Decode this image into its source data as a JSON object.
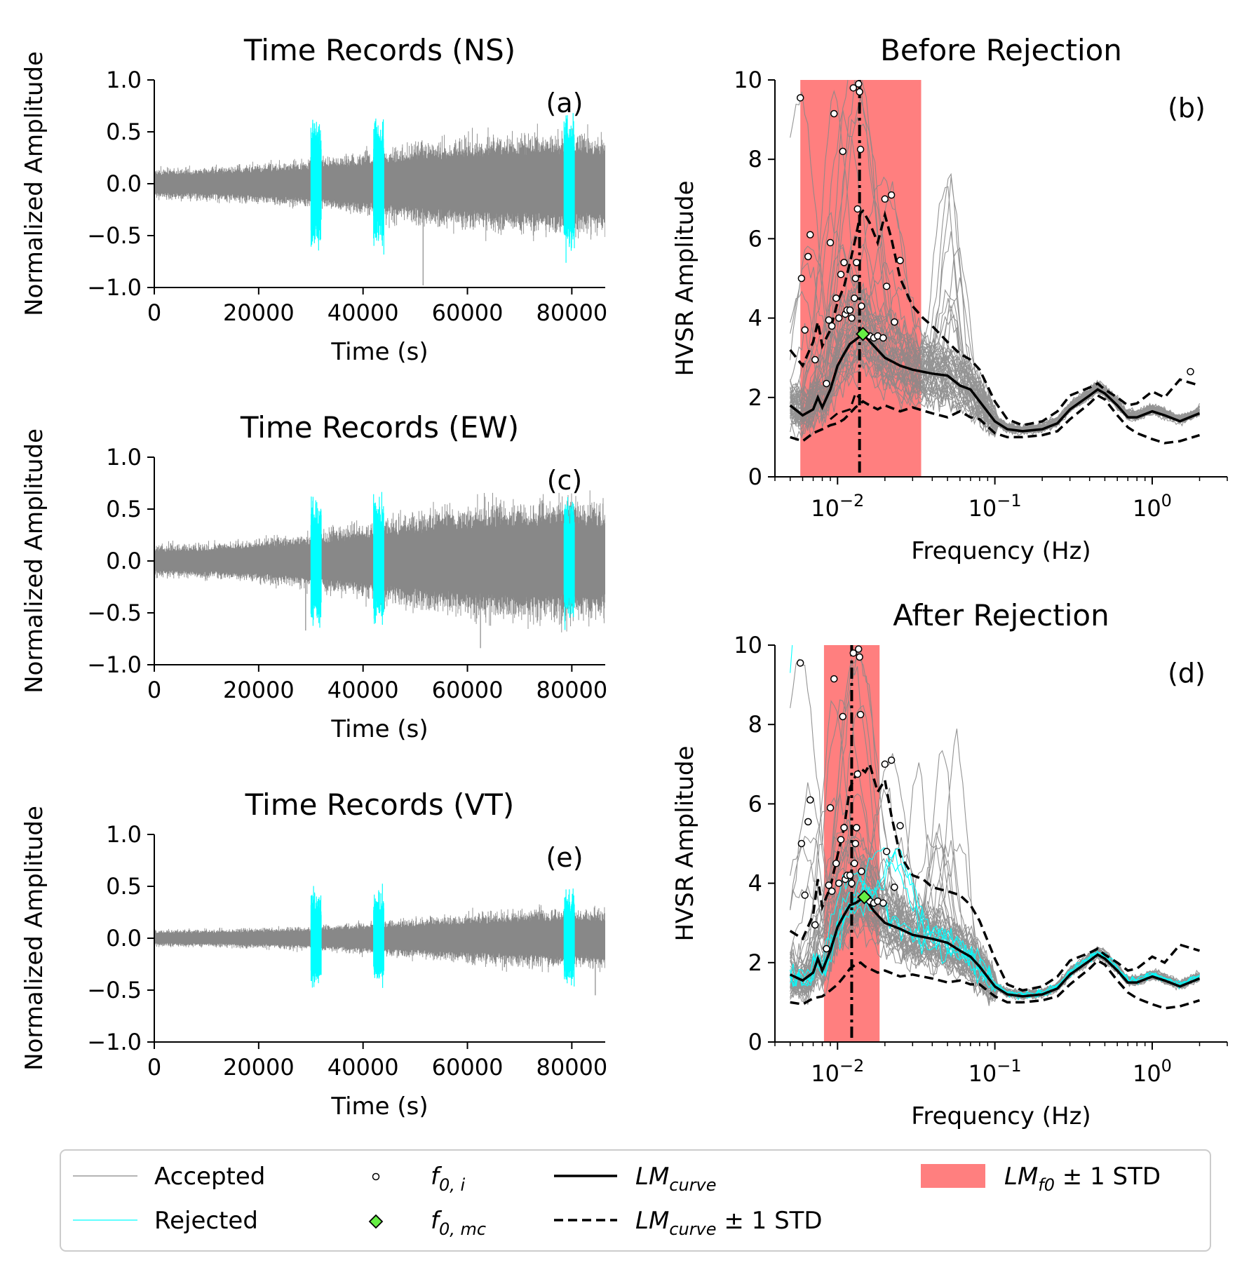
{
  "chart_data": [
    {
      "panel": "(a)",
      "type": "line",
      "title": "Time Records (NS)",
      "xlabel": "Time (s)",
      "ylabel": "Normalized Amplitude",
      "xlim": [
        0,
        86400
      ],
      "ylim": [
        -1.0,
        1.0
      ],
      "xticks": [
        0,
        20000,
        40000,
        60000,
        80000
      ],
      "yticks": [
        -1.0,
        -0.5,
        0.0,
        0.5,
        1.0
      ],
      "envelope": {
        "x": [
          0,
          10000,
          20000,
          30000,
          40000,
          50000,
          60000,
          70000,
          80000,
          86400
        ],
        "amplitude": [
          0.15,
          0.16,
          0.2,
          0.24,
          0.32,
          0.4,
          0.46,
          0.5,
          0.52,
          0.5
        ]
      },
      "spikes": [
        {
          "x": 51500,
          "y": -0.98
        }
      ],
      "rejected_windows": [
        [
          30000,
          32000
        ],
        [
          42000,
          44000
        ],
        [
          78500,
          80500
        ]
      ],
      "rejected_peak": 0.62
    },
    {
      "panel": "(c)",
      "type": "line",
      "title": "Time Records (EW)",
      "xlabel": "Time (s)",
      "ylabel": "Normalized Amplitude",
      "xlim": [
        0,
        86400
      ],
      "ylim": [
        -1.0,
        1.0
      ],
      "xticks": [
        0,
        20000,
        40000,
        60000,
        80000
      ],
      "yticks": [
        -1.0,
        -0.5,
        0.0,
        0.5,
        1.0
      ],
      "envelope": {
        "x": [
          0,
          10000,
          20000,
          30000,
          40000,
          50000,
          60000,
          70000,
          80000,
          86400
        ],
        "amplitude": [
          0.16,
          0.17,
          0.22,
          0.28,
          0.38,
          0.48,
          0.56,
          0.6,
          0.62,
          0.58
        ]
      },
      "spikes": [
        {
          "x": 29000,
          "y": -0.67
        },
        {
          "x": 62500,
          "y": -0.84
        }
      ],
      "rejected_windows": [
        [
          30000,
          32000
        ],
        [
          42000,
          44000
        ],
        [
          78500,
          80500
        ]
      ],
      "rejected_peak": 0.6
    },
    {
      "panel": "(e)",
      "type": "line",
      "title": "Time Records (VT)",
      "xlabel": "Time (s)",
      "ylabel": "Normalized Amplitude",
      "xlim": [
        0,
        86400
      ],
      "ylim": [
        -1.0,
        1.0
      ],
      "xticks": [
        0,
        20000,
        40000,
        60000,
        80000
      ],
      "yticks": [
        -1.0,
        -0.5,
        0.0,
        0.5,
        1.0
      ],
      "envelope": {
        "x": [
          0,
          10000,
          20000,
          30000,
          40000,
          50000,
          60000,
          70000,
          80000,
          86400
        ],
        "amplitude": [
          0.08,
          0.09,
          0.1,
          0.12,
          0.16,
          0.2,
          0.24,
          0.28,
          0.3,
          0.3
        ]
      },
      "spikes": [
        {
          "x": 84500,
          "y": -0.55
        }
      ],
      "rejected_windows": [
        [
          30000,
          32000
        ],
        [
          42000,
          44000
        ],
        [
          78500,
          80500
        ]
      ],
      "rejected_peak": 0.45
    },
    {
      "panel": "(b)",
      "type": "line",
      "title": "Before Rejection",
      "xlabel": "Frequency (Hz)",
      "ylabel": "HVSR Amplitude",
      "xscale": "log",
      "xlim": [
        0.004,
        3
      ],
      "ylim": [
        0,
        10
      ],
      "yticks": [
        0,
        2,
        4,
        6,
        8,
        10
      ],
      "xticks_major": [
        0.01,
        0.1,
        1
      ],
      "xtick_labels": [
        {
          "base": "10",
          "exp": "−2"
        },
        {
          "base": "10",
          "exp": "−1"
        },
        {
          "base": "10",
          "exp": "0"
        }
      ],
      "lm_f0_band": [
        0.0058,
        0.034
      ],
      "lm_f0": 0.0138,
      "f0_mc": {
        "x": 0.0145,
        "y": 3.6
      },
      "f0_i": [
        [
          0.0058,
          9.55
        ],
        [
          0.0059,
          5.0
        ],
        [
          0.0062,
          3.7
        ],
        [
          0.0065,
          5.55
        ],
        [
          0.0067,
          6.1
        ],
        [
          0.0072,
          2.95
        ],
        [
          0.0085,
          2.35
        ],
        [
          0.0088,
          3.95
        ],
        [
          0.009,
          5.9
        ],
        [
          0.0092,
          3.8
        ],
        [
          0.0095,
          9.15
        ],
        [
          0.0098,
          4.5
        ],
        [
          0.0102,
          4.0
        ],
        [
          0.0105,
          5.1
        ],
        [
          0.0108,
          8.2
        ],
        [
          0.011,
          5.4
        ],
        [
          0.0112,
          4.1
        ],
        [
          0.0115,
          4.2
        ],
        [
          0.012,
          4.2
        ],
        [
          0.0123,
          4.0
        ],
        [
          0.0126,
          9.8
        ],
        [
          0.0128,
          4.5
        ],
        [
          0.013,
          5.0
        ],
        [
          0.0132,
          5.4
        ],
        [
          0.0134,
          6.75
        ],
        [
          0.0136,
          9.9
        ],
        [
          0.0138,
          9.7
        ],
        [
          0.014,
          8.25
        ],
        [
          0.0142,
          4.3
        ],
        [
          0.016,
          3.55
        ],
        [
          0.017,
          3.5
        ],
        [
          0.018,
          3.55
        ],
        [
          0.0195,
          3.5
        ],
        [
          0.02,
          7.0
        ],
        [
          0.0205,
          4.8
        ],
        [
          0.022,
          7.1
        ],
        [
          0.023,
          3.9
        ],
        [
          0.025,
          5.45
        ],
        [
          1.75,
          2.65
        ]
      ],
      "lm_curve": {
        "x": [
          0.005,
          0.006,
          0.007,
          0.0075,
          0.008,
          0.009,
          0.01,
          0.011,
          0.012,
          0.013,
          0.0145,
          0.017,
          0.02,
          0.025,
          0.03,
          0.04,
          0.05,
          0.06,
          0.07,
          0.08,
          0.1,
          0.12,
          0.15,
          0.2,
          0.25,
          0.3,
          0.4,
          0.45,
          0.5,
          0.6,
          0.7,
          0.8,
          1.0,
          1.2,
          1.5,
          2.0
        ],
        "y": [
          1.8,
          1.55,
          1.7,
          2.0,
          1.75,
          2.2,
          2.8,
          3.1,
          3.35,
          3.45,
          3.6,
          3.3,
          3.0,
          2.8,
          2.7,
          2.6,
          2.55,
          2.3,
          2.2,
          1.9,
          1.4,
          1.2,
          1.15,
          1.2,
          1.35,
          1.7,
          2.05,
          2.2,
          2.1,
          1.8,
          1.5,
          1.5,
          1.65,
          1.55,
          1.4,
          1.6
        ]
      },
      "lm_curve_plus": {
        "x": [
          0.005,
          0.006,
          0.007,
          0.0075,
          0.008,
          0.009,
          0.01,
          0.011,
          0.012,
          0.013,
          0.014,
          0.0145,
          0.016,
          0.018,
          0.02,
          0.022,
          0.025,
          0.03,
          0.035,
          0.04,
          0.05,
          0.06,
          0.07,
          0.08,
          0.1,
          0.12,
          0.15,
          0.2,
          0.25,
          0.3,
          0.4,
          0.45,
          0.5,
          0.6,
          0.7,
          0.8,
          1.0,
          1.2,
          1.5,
          2.0
        ],
        "y": [
          3.2,
          2.8,
          3.4,
          3.9,
          3.3,
          3.7,
          4.4,
          4.8,
          5.4,
          6.0,
          6.65,
          6.7,
          6.4,
          5.9,
          6.6,
          6.0,
          5.0,
          4.3,
          4.0,
          3.8,
          3.4,
          3.1,
          2.95,
          2.7,
          1.9,
          1.45,
          1.3,
          1.4,
          1.65,
          2.05,
          2.25,
          2.35,
          2.2,
          2.0,
          1.8,
          1.85,
          2.15,
          2.0,
          2.45,
          2.3
        ]
      },
      "lm_curve_minus": {
        "x": [
          0.005,
          0.006,
          0.007,
          0.008,
          0.009,
          0.01,
          0.011,
          0.012,
          0.013,
          0.014,
          0.0145,
          0.016,
          0.018,
          0.02,
          0.025,
          0.03,
          0.04,
          0.05,
          0.06,
          0.07,
          0.08,
          0.1,
          0.12,
          0.15,
          0.2,
          0.25,
          0.3,
          0.4,
          0.45,
          0.5,
          0.6,
          0.7,
          0.8,
          1.0,
          1.2,
          1.5,
          2.0
        ],
        "y": [
          1.0,
          0.9,
          1.1,
          1.2,
          1.3,
          1.35,
          1.45,
          1.6,
          1.75,
          1.85,
          1.9,
          1.8,
          1.7,
          1.8,
          1.65,
          1.75,
          1.6,
          1.5,
          1.65,
          1.5,
          1.45,
          1.1,
          1.0,
          1.0,
          1.05,
          1.15,
          1.45,
          1.85,
          2.05,
          1.95,
          1.55,
          1.25,
          1.1,
          0.95,
          0.85,
          0.9,
          1.05
        ]
      },
      "lm_curve_minus_extra": {
        "x": [
          0.009,
          0.01,
          0.011,
          0.012,
          0.0125,
          0.013,
          0.014
        ],
        "y": [
          1.45,
          1.6,
          1.65,
          1.7,
          1.9,
          2.1,
          1.95
        ]
      }
    },
    {
      "panel": "(d)",
      "type": "line",
      "title": "After Rejection",
      "xlabel": "Frequency (Hz)",
      "ylabel": "HVSR Amplitude",
      "xscale": "log",
      "xlim": [
        0.004,
        3
      ],
      "ylim": [
        0,
        10
      ],
      "yticks": [
        0,
        2,
        4,
        6,
        8,
        10
      ],
      "xticks_major": [
        0.01,
        0.1,
        1
      ],
      "xtick_labels": [
        {
          "base": "10",
          "exp": "−2"
        },
        {
          "base": "10",
          "exp": "−1"
        },
        {
          "base": "10",
          "exp": "0"
        }
      ],
      "lm_f0_band": [
        0.0082,
        0.0185
      ],
      "lm_f0": 0.0123,
      "f0_mc": {
        "x": 0.0148,
        "y": 3.65
      },
      "f0_i": [
        [
          0.0058,
          9.55
        ],
        [
          0.0059,
          5.0
        ],
        [
          0.0062,
          3.7
        ],
        [
          0.0065,
          5.55
        ],
        [
          0.0067,
          6.1
        ],
        [
          0.0072,
          2.95
        ],
        [
          0.0085,
          2.35
        ],
        [
          0.0088,
          3.95
        ],
        [
          0.009,
          5.9
        ],
        [
          0.0092,
          3.8
        ],
        [
          0.0095,
          9.15
        ],
        [
          0.0098,
          4.5
        ],
        [
          0.0102,
          4.0
        ],
        [
          0.0105,
          5.1
        ],
        [
          0.0108,
          8.2
        ],
        [
          0.011,
          5.4
        ],
        [
          0.0112,
          4.1
        ],
        [
          0.0115,
          4.2
        ],
        [
          0.012,
          4.2
        ],
        [
          0.0123,
          4.0
        ],
        [
          0.0126,
          9.8
        ],
        [
          0.0128,
          4.5
        ],
        [
          0.013,
          5.0
        ],
        [
          0.0132,
          5.4
        ],
        [
          0.0134,
          6.75
        ],
        [
          0.0136,
          9.9
        ],
        [
          0.0138,
          9.7
        ],
        [
          0.014,
          8.25
        ],
        [
          0.0142,
          4.3
        ],
        [
          0.016,
          3.55
        ],
        [
          0.017,
          3.5
        ],
        [
          0.018,
          3.55
        ],
        [
          0.0195,
          3.5
        ],
        [
          0.02,
          7.0
        ],
        [
          0.0205,
          4.8
        ],
        [
          0.022,
          7.1
        ],
        [
          0.023,
          3.9
        ],
        [
          0.025,
          5.45
        ]
      ],
      "lm_curve": {
        "x": [
          0.005,
          0.006,
          0.007,
          0.0075,
          0.008,
          0.009,
          0.01,
          0.011,
          0.012,
          0.013,
          0.0148,
          0.017,
          0.02,
          0.025,
          0.03,
          0.04,
          0.05,
          0.06,
          0.07,
          0.08,
          0.1,
          0.12,
          0.15,
          0.2,
          0.25,
          0.3,
          0.4,
          0.45,
          0.5,
          0.6,
          0.7,
          0.8,
          1.0,
          1.2,
          1.5,
          2.0
        ],
        "y": [
          1.7,
          1.55,
          1.75,
          2.1,
          1.8,
          2.3,
          2.9,
          3.2,
          3.45,
          3.5,
          3.65,
          3.3,
          3.0,
          2.85,
          2.7,
          2.6,
          2.5,
          2.3,
          2.15,
          1.9,
          1.4,
          1.2,
          1.15,
          1.2,
          1.35,
          1.7,
          2.05,
          2.2,
          2.1,
          1.8,
          1.5,
          1.5,
          1.65,
          1.55,
          1.4,
          1.6
        ]
      },
      "lm_curve_plus": {
        "x": [
          0.005,
          0.006,
          0.007,
          0.0075,
          0.008,
          0.009,
          0.01,
          0.011,
          0.012,
          0.013,
          0.014,
          0.015,
          0.016,
          0.018,
          0.02,
          0.022,
          0.025,
          0.03,
          0.035,
          0.04,
          0.05,
          0.06,
          0.07,
          0.08,
          0.1,
          0.12,
          0.15,
          0.2,
          0.25,
          0.3,
          0.4,
          0.45,
          0.5,
          0.6,
          0.7,
          0.8,
          1.0,
          1.2,
          1.5,
          2.0
        ],
        "y": [
          2.8,
          2.6,
          3.2,
          4.1,
          3.4,
          3.9,
          4.7,
          5.4,
          6.4,
          6.7,
          6.9,
          6.8,
          7.0,
          6.3,
          6.6,
          5.7,
          4.7,
          4.2,
          4.1,
          3.9,
          3.8,
          3.7,
          3.45,
          3.05,
          2.1,
          1.45,
          1.3,
          1.4,
          1.65,
          2.05,
          2.25,
          2.35,
          2.2,
          2.0,
          1.8,
          1.85,
          2.15,
          2.0,
          2.45,
          2.3
        ]
      },
      "lm_curve_minus": {
        "x": [
          0.005,
          0.006,
          0.007,
          0.008,
          0.009,
          0.01,
          0.011,
          0.012,
          0.013,
          0.014,
          0.015,
          0.016,
          0.018,
          0.02,
          0.025,
          0.03,
          0.04,
          0.05,
          0.06,
          0.07,
          0.08,
          0.1,
          0.12,
          0.15,
          0.2,
          0.25,
          0.3,
          0.4,
          0.45,
          0.5,
          0.6,
          0.7,
          0.8,
          1.0,
          1.2,
          1.5,
          2.0
        ],
        "y": [
          1.0,
          0.95,
          1.1,
          1.15,
          1.3,
          1.45,
          1.65,
          1.85,
          1.95,
          2.0,
          1.9,
          1.85,
          1.75,
          1.8,
          1.65,
          1.7,
          1.6,
          1.5,
          1.55,
          1.45,
          1.45,
          1.15,
          1.0,
          1.0,
          1.05,
          1.15,
          1.45,
          1.85,
          2.05,
          1.95,
          1.55,
          1.25,
          1.1,
          0.95,
          0.85,
          0.9,
          1.05
        ]
      },
      "lm_curve_minus_extra": null
    }
  ],
  "legend": {
    "accepted": "Accepted",
    "rejected": "Rejected",
    "f0_i": {
      "base": "f",
      "sub": "0, i"
    },
    "f0_mc": {
      "base": "f",
      "sub": "0, mc"
    },
    "lm_curve": {
      "base": "LM",
      "sub": "curve",
      "suffix": ""
    },
    "lm_curve_std": {
      "base": "LM",
      "sub": "curve",
      "suffix": " ± 1 STD"
    },
    "lm_f0_std": {
      "base": "LM",
      "sub": "f0",
      "suffix": " ± 1 STD"
    }
  },
  "colors": {
    "accepted": "#888888",
    "rejected": "#00ffff",
    "band": "#ff7f7f",
    "f0_mc": "#66ee44",
    "curve": "#000000"
  }
}
